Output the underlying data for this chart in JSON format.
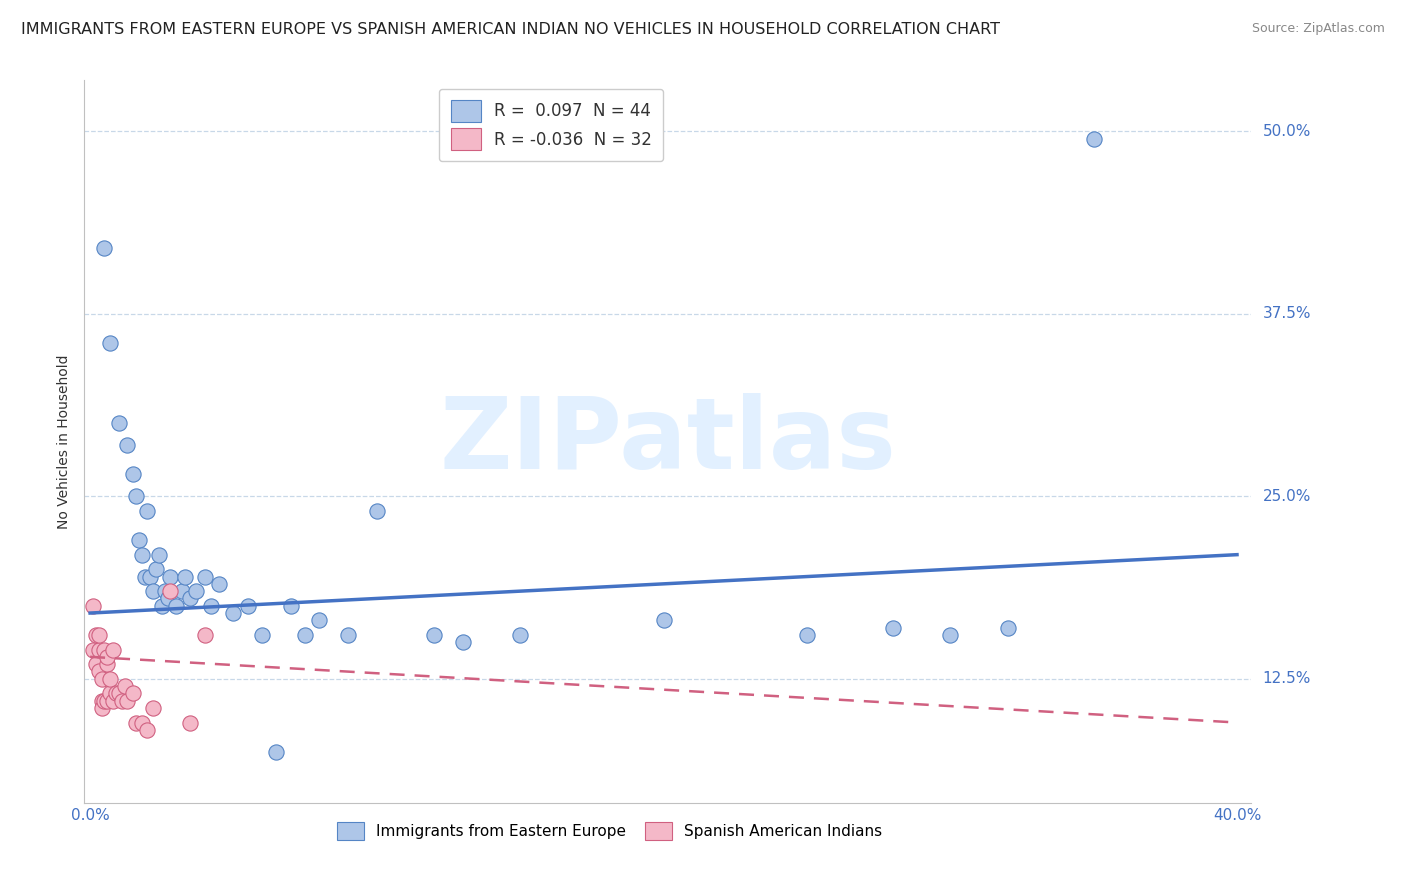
{
  "title": "IMMIGRANTS FROM EASTERN EUROPE VS SPANISH AMERICAN INDIAN NO VEHICLES IN HOUSEHOLD CORRELATION CHART",
  "source": "Source: ZipAtlas.com",
  "ylabel": "No Vehicles in Household",
  "legend_r1": "R =  0.097",
  "legend_n1": "N = 44",
  "legend_r2": "R = -0.036",
  "legend_n2": "N = 32",
  "blue_scatter_x": [
    0.005,
    0.007,
    0.01,
    0.013,
    0.015,
    0.016,
    0.017,
    0.018,
    0.019,
    0.02,
    0.021,
    0.022,
    0.023,
    0.024,
    0.025,
    0.026,
    0.027,
    0.028,
    0.03,
    0.032,
    0.033,
    0.035,
    0.037,
    0.04,
    0.042,
    0.045,
    0.05,
    0.055,
    0.06,
    0.065,
    0.07,
    0.075,
    0.08,
    0.09,
    0.1,
    0.12,
    0.13,
    0.15,
    0.2,
    0.25,
    0.28,
    0.3,
    0.32,
    0.35
  ],
  "blue_scatter_y": [
    0.42,
    0.355,
    0.3,
    0.285,
    0.265,
    0.25,
    0.22,
    0.21,
    0.195,
    0.24,
    0.195,
    0.185,
    0.2,
    0.21,
    0.175,
    0.185,
    0.18,
    0.195,
    0.175,
    0.185,
    0.195,
    0.18,
    0.185,
    0.195,
    0.175,
    0.19,
    0.17,
    0.175,
    0.155,
    0.075,
    0.175,
    0.155,
    0.165,
    0.155,
    0.24,
    0.155,
    0.15,
    0.155,
    0.165,
    0.155,
    0.16,
    0.155,
    0.16,
    0.495
  ],
  "pink_scatter_x": [
    0.001,
    0.001,
    0.002,
    0.002,
    0.003,
    0.003,
    0.003,
    0.004,
    0.004,
    0.004,
    0.005,
    0.005,
    0.006,
    0.006,
    0.006,
    0.007,
    0.007,
    0.008,
    0.008,
    0.009,
    0.01,
    0.011,
    0.012,
    0.013,
    0.015,
    0.016,
    0.018,
    0.02,
    0.022,
    0.028,
    0.035,
    0.04
  ],
  "pink_scatter_y": [
    0.175,
    0.145,
    0.155,
    0.135,
    0.145,
    0.13,
    0.155,
    0.11,
    0.125,
    0.105,
    0.145,
    0.11,
    0.135,
    0.11,
    0.14,
    0.115,
    0.125,
    0.145,
    0.11,
    0.115,
    0.115,
    0.11,
    0.12,
    0.11,
    0.115,
    0.095,
    0.095,
    0.09,
    0.105,
    0.185,
    0.095,
    0.155
  ],
  "blue_line_x": [
    0.0,
    0.4
  ],
  "blue_line_y": [
    0.17,
    0.21
  ],
  "pink_line_x": [
    0.0,
    0.4
  ],
  "pink_line_y": [
    0.14,
    0.095
  ],
  "xlim": [
    -0.002,
    0.405
  ],
  "ylim": [
    0.04,
    0.535
  ],
  "ytick_vals": [
    0.125,
    0.25,
    0.375,
    0.5
  ],
  "ytick_labels": [
    "12.5%",
    "25.0%",
    "37.5%",
    "50.0%"
  ],
  "xtick_vals": [
    0.0,
    0.05,
    0.1,
    0.15,
    0.2,
    0.25,
    0.3,
    0.35,
    0.4
  ],
  "xtick_show": [
    0.0,
    0.4
  ],
  "bg_color": "#ffffff",
  "blue_color": "#aec6e8",
  "blue_edge_color": "#5585c5",
  "blue_line_color": "#4472c4",
  "pink_color": "#f4b8c8",
  "pink_edge_color": "#d06080",
  "pink_line_color": "#d06080",
  "scatter_size": 120,
  "grid_color": "#c8d8e8",
  "grid_linestyle": "--",
  "axis_color": "#c0c0c0",
  "tick_color": "#4472c4",
  "watermark_text": "ZIPatlas",
  "watermark_color": "#ddeeff",
  "title_fontsize": 11.5,
  "source_fontsize": 9,
  "tick_fontsize": 11,
  "ylabel_fontsize": 10,
  "legend_fontsize": 12
}
